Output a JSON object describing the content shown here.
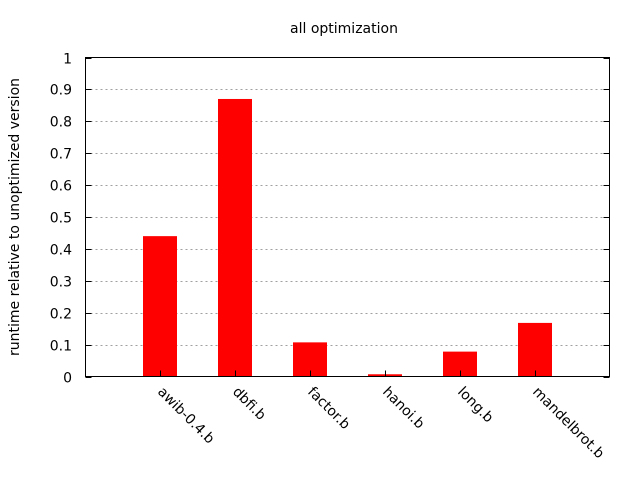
{
  "chart_data": {
    "type": "bar",
    "title": "all optimization",
    "xlabel": "",
    "ylabel": "runtime relative to unoptimized version",
    "categories": [
      "awib-0.4.b",
      "dbfi.b",
      "factor.b",
      "hanoi.b",
      "long.b",
      "mandelbrot.b"
    ],
    "series": [
      {
        "values": [
          0.44,
          0.87,
          0.107,
          0.007,
          0.078,
          0.168
        ]
      }
    ],
    "ylim": [
      0,
      1
    ],
    "yticks": [
      "0",
      "0.1",
      "0.2",
      "0.3",
      "0.4",
      "0.5",
      "0.6",
      "0.7",
      "0.8",
      "0.9",
      "1"
    ],
    "grid": true,
    "legend": "none",
    "bar_color": "#ff0000"
  }
}
